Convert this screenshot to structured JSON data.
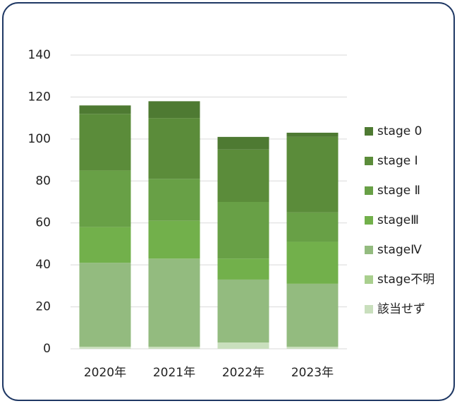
{
  "chart_data": {
    "type": "stacked_bar",
    "categories": [
      "2020年",
      "2021年",
      "2022年",
      "2023年"
    ],
    "series": [
      {
        "name": "該当せず",
        "color": "#c9dfbd",
        "values": [
          1,
          1,
          3,
          1
        ]
      },
      {
        "name": "stage不明",
        "color": "#a9cf8e",
        "values": [
          0,
          0,
          0,
          0
        ]
      },
      {
        "name": "stageⅣ",
        "color": "#93bb7f",
        "values": [
          40,
          42,
          30,
          30
        ]
      },
      {
        "name": "stageⅢ",
        "color": "#72b04b",
        "values": [
          17,
          18,
          10,
          20
        ]
      },
      {
        "name": "stage Ⅱ",
        "color": "#68a046",
        "values": [
          27,
          20,
          27,
          14
        ]
      },
      {
        "name": "stage Ⅰ",
        "color": "#5b8c3a",
        "values": [
          27,
          29,
          25,
          36
        ]
      },
      {
        "name": "stage 0",
        "color": "#4e7a32",
        "values": [
          4,
          8,
          6,
          2
        ]
      }
    ],
    "ylim": [
      0,
      140
    ],
    "yticks": [
      0,
      20,
      40,
      60,
      80,
      100,
      120,
      140
    ],
    "grid": true,
    "legend": "right"
  }
}
